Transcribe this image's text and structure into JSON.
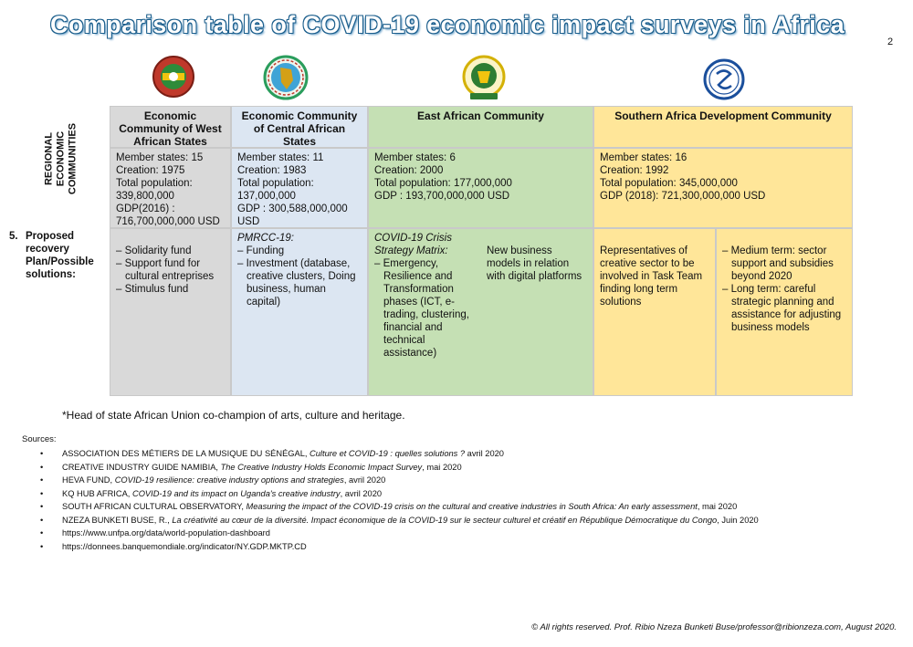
{
  "title": "Comparison table of COVID-19 economic impact surveys in Africa",
  "page_number": "2",
  "logos": [
    {
      "name": "ecowas-logo",
      "color": "#c0392b"
    },
    {
      "name": "eccas-logo",
      "color": "#2a9d5c"
    },
    {
      "name": "eac-logo",
      "color": "#d4b106"
    },
    {
      "name": "sadc-logo",
      "color": "#1b4f9c"
    }
  ],
  "row_label": "REGIONAL\nECONOMIC\nCOMMUNITIES",
  "proposed": {
    "num": "5.",
    "text": "Proposed recovery Plan/Possible solutions:"
  },
  "communities": [
    {
      "name": "Economic Community of West African States",
      "stats": [
        "Member states: 15",
        "Creation: 1975",
        "Total population: 339,800,000",
        "GDP(2016) : 716,700,000,000 USD"
      ],
      "solutions": [
        "Solidarity fund",
        "Support fund for cultural entreprises",
        "Stimulus fund"
      ]
    },
    {
      "name": "Economic Community of Central African States",
      "stats": [
        "Member states: 11",
        "Creation: 1983",
        "Total population: 137,000,000",
        "GDP : 300,588,000,000 USD"
      ],
      "plan_title": "PMRCC-19:",
      "solutions": [
        "Funding",
        "Investment (database, creative clusters, Doing business, human capital)"
      ]
    },
    {
      "name": "East African Community",
      "stats": [
        "Member states: 6",
        "Creation: 2000",
        "Total population: 177,000,000",
        "GDP : 193,700,000,000 USD"
      ],
      "plan_title": "COVID-19 Crisis Strategy Matrix:",
      "solutions": [
        "Emergency, Resilience and Transformation phases (ICT, e-trading, clustering, financial and technical assistance)"
      ],
      "extra": "New business models in relation with digital platforms"
    },
    {
      "name": "Southern Africa Development Community",
      "stats": [
        "Member states: 16",
        "Creation: 1992",
        "Total population: 345,000,000",
        "GDP (2018): 721,300,000,000 USD"
      ],
      "left_text": "Representatives of creative sector to be involved in Task Team finding long term solutions",
      "solutions": [
        "Medium term: sector support and subsidies beyond 2020",
        "Long term: careful strategic planning and assistance for adjusting business models"
      ]
    }
  ],
  "note": "*Head of state African Union co-champion of arts, culture and heritage.",
  "sources_label": "Sources:",
  "sources": [
    {
      "plain": "ASSOCIATION DES MÉTIERS DE LA MUSIQUE DU SÉNÉGAL, ",
      "ital": "Culture et COVID-19 :  quelles solutions ?",
      "after": " avril 2020"
    },
    {
      "plain": "CREATIVE INDUSTRY GUIDE NAMIBIA, ",
      "ital": "The Creative Industry Holds Economic Impact Survey",
      "after": ", mai 2020"
    },
    {
      "plain": "HEVA FUND, ",
      "ital": "COVID-19 resilience: creative industry options and strategies",
      "after": ", avril 2020"
    },
    {
      "plain": "KQ HUB AFRICA, ",
      "ital": "COVID-19 and its impact on Uganda's creative industry",
      "after": ", avril 2020"
    },
    {
      "plain": "SOUTH AFRICAN CULTURAL OBSERVATORY, ",
      "ital": "Measuring the impact of the COVID-19 crisis on the cultural and creative industries in South Africa: An early assessment",
      "after": ", mai 2020"
    },
    {
      "plain": "NZEZA BUNKETI BUSE, R., ",
      "ital": "La créativité au cœur de la diversité. Impact économique de la COVID-19 sur le secteur culturel et créatif en République Démocratique du Congo",
      "after": ", Juin 2020"
    },
    {
      "plain": "https://www.unfpa.org/data/world-population-dashboard",
      "ital": "",
      "after": ""
    },
    {
      "plain": "https://donnees.banquemondiale.org/indicator/NY.GDP.MKTP.CD",
      "ital": "",
      "after": ""
    }
  ],
  "footer": "© All rights reserved. Prof. Ribio Nzeza Bunketi Buse/professor@ribionzeza.com, August 2020."
}
